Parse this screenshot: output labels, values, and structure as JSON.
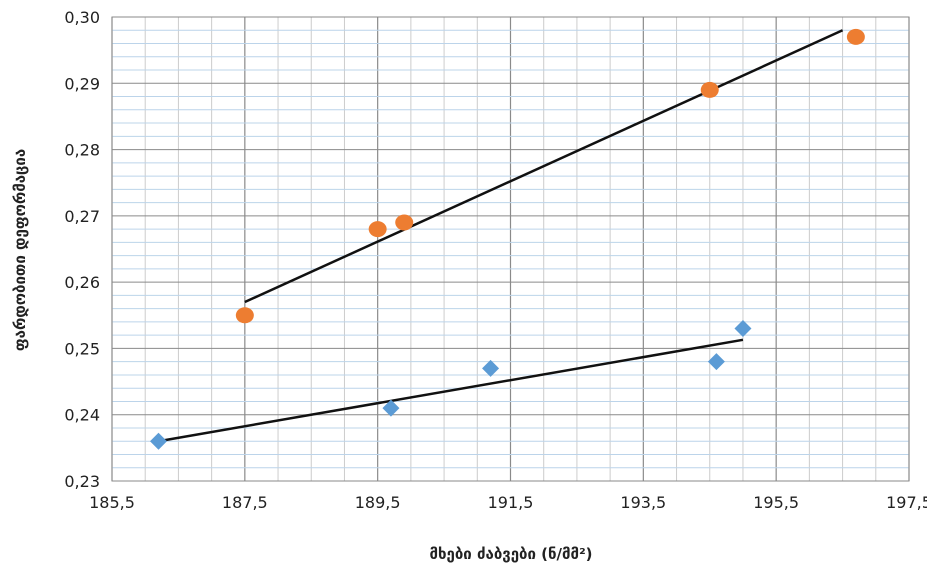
{
  "chart_data": {
    "type": "scatter",
    "title": "",
    "xlabel": "მხები ძაბვები (ნ/მმ²)",
    "ylabel": "ფარდობითი დეფორმაცია",
    "xlim": [
      185.5,
      197.5
    ],
    "ylim": [
      0.23,
      0.3
    ],
    "x_ticks": [
      185.5,
      186.0,
      186.5,
      187.0,
      187.5,
      188.0,
      188.5,
      189.0,
      189.5,
      190.0,
      190.5,
      191.0,
      191.5,
      192.0,
      192.5,
      193.0,
      193.5,
      194.0,
      194.5,
      195.0,
      195.5,
      196.0,
      196.5,
      197.0,
      197.5
    ],
    "x_tick_labels": [
      "185,5",
      "187,5",
      "189,5",
      "191,5",
      "193,5",
      "195,5",
      "197,5"
    ],
    "y_tick_labels": [
      "0,23",
      "0,24",
      "0,25",
      "0,26",
      "0,27",
      "0,28",
      "0,29",
      "0,30"
    ],
    "grid": true,
    "legend": "none",
    "series": [
      {
        "marker": "circle",
        "color": "#ED7D31",
        "points": [
          {
            "x": 187.5,
            "y": 0.255
          },
          {
            "x": 189.5,
            "y": 0.268
          },
          {
            "x": 189.9,
            "y": 0.269
          },
          {
            "x": 194.5,
            "y": 0.289
          },
          {
            "x": 196.7,
            "y": 0.297
          }
        ],
        "trendline": [
          {
            "x": 187.5,
            "y": 0.257
          },
          {
            "x": 196.5,
            "y": 0.298
          }
        ]
      },
      {
        "marker": "diamond",
        "color": "#5B9BD5",
        "points": [
          {
            "x": 186.2,
            "y": 0.236
          },
          {
            "x": 189.7,
            "y": 0.241
          },
          {
            "x": 191.2,
            "y": 0.247
          },
          {
            "x": 194.6,
            "y": 0.248
          },
          {
            "x": 195.0,
            "y": 0.253
          }
        ],
        "trendline": [
          {
            "x": 186.2,
            "y": 0.236
          },
          {
            "x": 195.0,
            "y": 0.2513
          }
        ]
      }
    ]
  }
}
